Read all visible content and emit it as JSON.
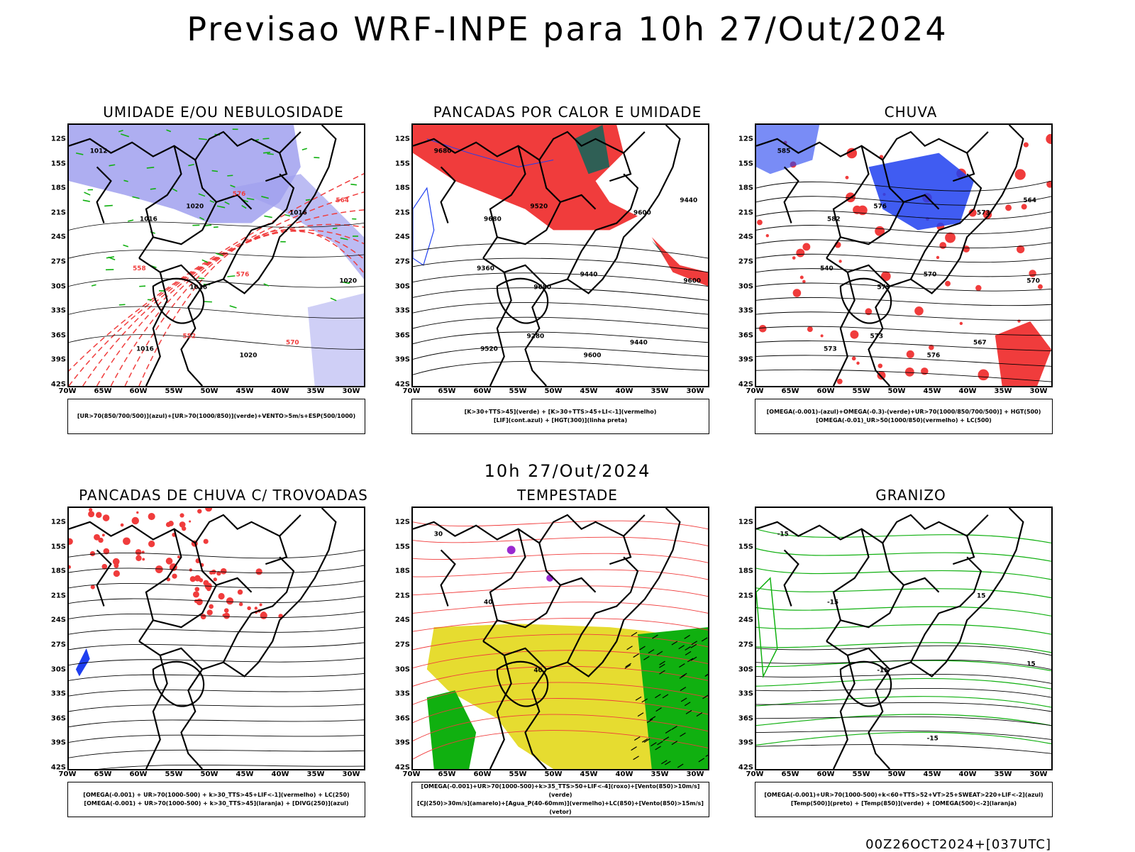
{
  "header": {
    "title": "Previsao WRF-INPE  para 10h 27/Out/2024"
  },
  "subheader": {
    "title": "10h 27/Out/2024"
  },
  "footer": {
    "run": "00Z26OCT2024+[037UTC]"
  },
  "axes": {
    "lat_labels": [
      "12S",
      "15S",
      "18S",
      "21S",
      "24S",
      "27S",
      "30S",
      "33S",
      "36S",
      "39S",
      "42S"
    ],
    "lon_labels": [
      "70W",
      "65W",
      "60W",
      "55W",
      "50W",
      "45W",
      "40W",
      "35W",
      "30W"
    ]
  },
  "colors": {
    "blue_fill": "#a0a0ee",
    "red": "#f03c3c",
    "green": "#10b010",
    "dark_teal": "#2f5f55",
    "yellow": "#e6dc30",
    "purple": "#9a2ad0",
    "blue": "#1f3ff0"
  },
  "panels": [
    {
      "id": "umidade",
      "title": "UMIDADE E/OU NEBULOSIDADE",
      "legend": [
        "[UR>70(850/700/500)](azul)+[UR>70(1000/850)](verde)+VENTO>5m/s+ESP(500/1000)"
      ],
      "contour_labels": [
        "1012",
        "1016",
        "1016",
        "1020",
        "1016",
        "1020",
        "1016",
        "1020",
        "576",
        "570",
        "564",
        "558",
        "552",
        "576"
      ]
    },
    {
      "id": "pancadas_calor",
      "title": "PANCADAS POR CALOR E UMIDADE",
      "legend": [
        "[K>30+TTS>45](verde) + [K>30+TTS>45+LI<-1](vermelho)",
        "[LIF](cont.azul) + [HGT(300)](linha preta)"
      ],
      "contour_labels": [
        "9680",
        "9680",
        "9680",
        "9600",
        "9600",
        "9600",
        "9520",
        "9520",
        "9440",
        "9440",
        "9440",
        "9360",
        "9280"
      ]
    },
    {
      "id": "chuva",
      "title": "CHUVA",
      "legend": [
        "[OMEGA(-0.001)-(azul)+OMEGA(-0.3)-(verde)+UR>70(1000/850/700/500)] + HGT(500)",
        "[OMEGA(-0.01)_UR>50(1000/850)(vermelho) + LC(500)"
      ],
      "contour_labels": [
        "585",
        "582",
        "579",
        "576",
        "573",
        "570",
        "573",
        "576",
        "570",
        "567",
        "564",
        "540",
        "573"
      ]
    },
    {
      "id": "trovoadas",
      "title": "PANCADAS DE CHUVA C/ TROVOADAS",
      "legend": [
        "[OMEGA(-0.001) + UR>70(1000-500) + k>30_TTS>45+LIF<-1](vermelho) + LC(250)",
        "[OMEGA(-0.001) + UR>70(1000-500) + k>30_TTS>45](laranja) + [DIVG(250)](azul)"
      ],
      "contour_labels": []
    },
    {
      "id": "tempestade",
      "title": "TEMPESTADE",
      "legend": [
        "[OMEGA(-0.001)+UR>70(1000-500)+k>35_TTS>50+LIF<-4](roxo)+[Vento(850)>10m/s](verde)",
        "[CJ(250)>30m/s](amarelo)+[Agua_P(40-60mm)](vermelho)+LC(850)+[Vento(850)>15m/s](vetor)"
      ],
      "contour_labels": [
        "30",
        "40",
        "40"
      ]
    },
    {
      "id": "granizo",
      "title": "GRANIZO",
      "legend": [
        "[OMEGA(-0.001)+UR>70(1000-500)+k<60+TTS>52+VT>25+SWEAT>220+LIF<-2](azul)",
        "[Temp(500)](preto) + [Temp(850)](verde) + [OMEGA(500)<-2](laranja)"
      ],
      "contour_labels": [
        "-15",
        "-15",
        "-15",
        "-15",
        "15",
        "15"
      ]
    }
  ]
}
